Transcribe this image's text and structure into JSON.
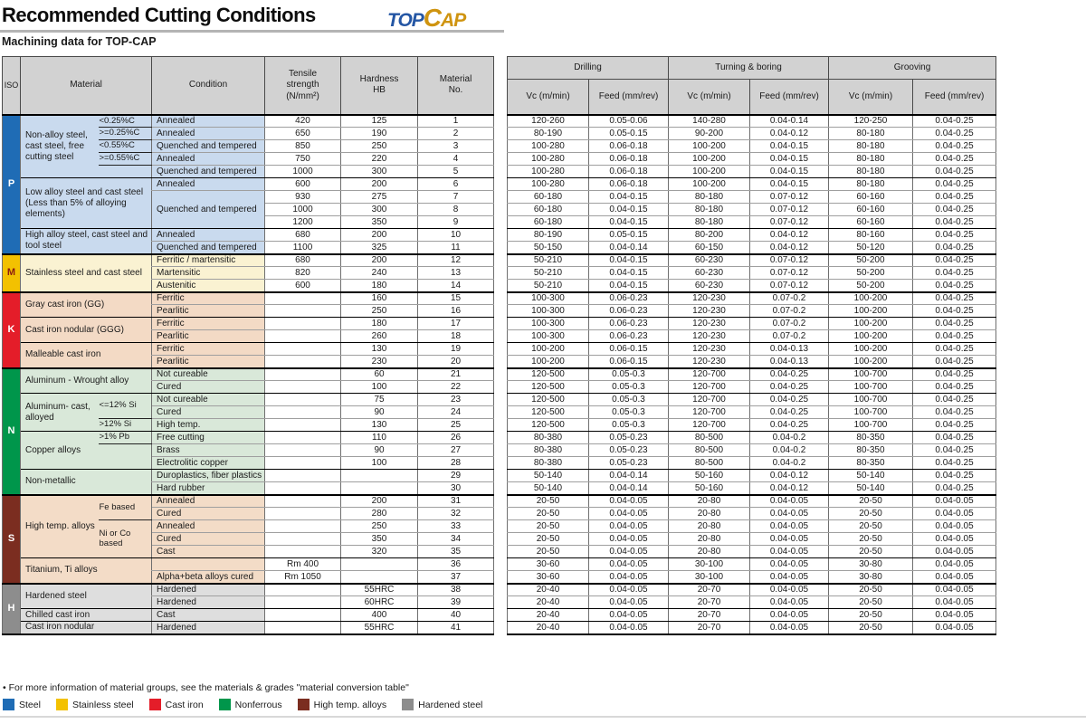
{
  "page": {
    "title": "Recommended Cutting Conditions",
    "subtitle": "Machining data for TOP-CAP",
    "logo": {
      "top": "TOP",
      "c": "C",
      "ap": "AP"
    },
    "footnote": "• For more information of material groups, see the materials & grades \"material conversion table\""
  },
  "left_table": {
    "headers": {
      "iso": "ISO",
      "material": "Material",
      "condition": "Condition",
      "tensile": "Tensile\nstrength\n(N/mm²)",
      "hardness": "Hardness\nHB",
      "material_no": "Material\nNo."
    }
  },
  "right_table": {
    "groups": [
      "Drilling",
      "Turning & boring",
      "Grooving"
    ],
    "sub_headers": [
      "Vc (m/min)",
      "Feed (mm/rev)",
      "Vc (m/min)",
      "Feed (mm/rev)",
      "Vc (m/min)",
      "Feed (mm/rev)"
    ]
  },
  "legend": [
    {
      "label": "Steel",
      "color": "#1f6cb5"
    },
    {
      "label": "Stainless steel",
      "color": "#f3c101"
    },
    {
      "label": "Cast iron",
      "color": "#e41d29"
    },
    {
      "label": "Nonferrous",
      "color": "#00964b"
    },
    {
      "label": "High temp. alloys",
      "color": "#7b2d20"
    },
    {
      "label": "Hardened steel",
      "color": "#8d8d8d"
    }
  ],
  "sections": [
    {
      "iso": "P",
      "band": "#1f6cb5",
      "letter_color": "#ffffff",
      "tint": "#c9daee",
      "groups": [
        {
          "material": "Non-alloy steel, cast steel, free cutting steel",
          "subs": [
            {
              "text": "<0.25%C",
              "span": 1
            },
            {
              "text": ">=0.25%C",
              "span": 1
            },
            {
              "text": "<0.55%C",
              "span": 1
            },
            {
              "text": ">=0.55%C",
              "span": 1
            },
            {
              "text": "",
              "span": 1
            }
          ],
          "conds": [
            "Annealed",
            "Annealed",
            "Quenched and tempered",
            "Annealed",
            "Quenched and tempered"
          ],
          "rows": [
            {
              "t": "420",
              "hb": "125",
              "no": "1",
              "v": [
                "120-260",
                "0.05-0.06",
                "140-280",
                "0.04-0.14",
                "120-250",
                "0.04-0.25"
              ]
            },
            {
              "t": "650",
              "hb": "190",
              "no": "2",
              "v": [
                "80-190",
                "0.05-0.15",
                "90-200",
                "0.04-0.12",
                "80-180",
                "0.04-0.25"
              ]
            },
            {
              "t": "850",
              "hb": "250",
              "no": "3",
              "v": [
                "100-280",
                "0.06-0.18",
                "100-200",
                "0.04-0.15",
                "80-180",
                "0.04-0.25"
              ]
            },
            {
              "t": "750",
              "hb": "220",
              "no": "4",
              "v": [
                "100-280",
                "0.06-0.18",
                "100-200",
                "0.04-0.15",
                "80-180",
                "0.04-0.25"
              ]
            },
            {
              "t": "1000",
              "hb": "300",
              "no": "5",
              "v": [
                "100-280",
                "0.06-0.18",
                "100-200",
                "0.04-0.15",
                "80-180",
                "0.04-0.25"
              ]
            }
          ]
        },
        {
          "material": "Low alloy steel and cast steel (Less than 5% of alloying elements)",
          "conds": [
            {
              "text": "Annealed",
              "span": 1
            },
            {
              "text": "Quenched and tempered",
              "span": 3
            }
          ],
          "rows": [
            {
              "t": "600",
              "hb": "200",
              "no": "6",
              "v": [
                "100-280",
                "0.06-0.18",
                "100-200",
                "0.04-0.15",
                "80-180",
                "0.04-0.25"
              ]
            },
            {
              "t": "930",
              "hb": "275",
              "no": "7",
              "v": [
                "60-180",
                "0.04-0.15",
                "80-180",
                "0.07-0.12",
                "60-160",
                "0.04-0.25"
              ]
            },
            {
              "t": "1000",
              "hb": "300",
              "no": "8",
              "v": [
                "60-180",
                "0.04-0.15",
                "80-180",
                "0.07-0.12",
                "60-160",
                "0.04-0.25"
              ]
            },
            {
              "t": "1200",
              "hb": "350",
              "no": "9",
              "v": [
                "60-180",
                "0.04-0.15",
                "80-180",
                "0.07-0.12",
                "60-160",
                "0.04-0.25"
              ]
            }
          ]
        },
        {
          "material": "High alloy steel, cast steel and tool steel",
          "conds": [
            "Annealed",
            "Quenched and tempered"
          ],
          "rows": [
            {
              "t": "680",
              "hb": "200",
              "no": "10",
              "v": [
                "80-190",
                "0.05-0.15",
                "80-200",
                "0.04-0.12",
                "80-160",
                "0.04-0.25"
              ]
            },
            {
              "t": "1100",
              "hb": "325",
              "no": "11",
              "v": [
                "50-150",
                "0.04-0.14",
                "60-150",
                "0.04-0.12",
                "50-120",
                "0.04-0.25"
              ]
            }
          ]
        }
      ]
    },
    {
      "iso": "M",
      "band": "#f3c101",
      "letter_color": "#8c1d10",
      "tint": "#faf2d2",
      "groups": [
        {
          "material": "Stainless steel and cast steel",
          "conds": [
            "Ferritic / martensitic",
            "Martensitic",
            "Austenitic"
          ],
          "rows": [
            {
              "t": "680",
              "hb": "200",
              "no": "12",
              "v": [
                "50-210",
                "0.04-0.15",
                "60-230",
                "0.07-0.12",
                "50-200",
                "0.04-0.25"
              ]
            },
            {
              "t": "820",
              "hb": "240",
              "no": "13",
              "v": [
                "50-210",
                "0.04-0.15",
                "60-230",
                "0.07-0.12",
                "50-200",
                "0.04-0.25"
              ]
            },
            {
              "t": "600",
              "hb": "180",
              "no": "14",
              "v": [
                "50-210",
                "0.04-0.15",
                "60-230",
                "0.07-0.12",
                "50-200",
                "0.04-0.25"
              ]
            }
          ]
        }
      ]
    },
    {
      "iso": "K",
      "band": "#e41d29",
      "letter_color": "#ffffff",
      "tint": "#f3dac5",
      "groups": [
        {
          "material": "Gray cast iron (GG)",
          "conds": [
            "Ferritic",
            "Pearlitic"
          ],
          "rows": [
            {
              "t": "",
              "hb": "160",
              "no": "15",
              "v": [
                "100-300",
                "0.06-0.23",
                "120-230",
                "0.07-0.2",
                "100-200",
                "0.04-0.25"
              ]
            },
            {
              "t": "",
              "hb": "250",
              "no": "16",
              "v": [
                "100-300",
                "0.06-0.23",
                "120-230",
                "0.07-0.2",
                "100-200",
                "0.04-0.25"
              ]
            }
          ]
        },
        {
          "material": "Cast iron nodular (GGG)",
          "conds": [
            "Ferritic",
            "Pearlitic"
          ],
          "rows": [
            {
              "t": "",
              "hb": "180",
              "no": "17",
              "v": [
                "100-300",
                "0.06-0.23",
                "120-230",
                "0.07-0.2",
                "100-200",
                "0.04-0.25"
              ]
            },
            {
              "t": "",
              "hb": "260",
              "no": "18",
              "v": [
                "100-300",
                "0.06-0.23",
                "120-230",
                "0.07-0.2",
                "100-200",
                "0.04-0.25"
              ]
            }
          ]
        },
        {
          "material": "Malleable cast iron",
          "conds": [
            "Ferritic",
            "Pearlitic"
          ],
          "rows": [
            {
              "t": "",
              "hb": "130",
              "no": "19",
              "v": [
                "100-200",
                "0.06-0.15",
                "120-230",
                "0.04-0.13",
                "100-200",
                "0.04-0.25"
              ]
            },
            {
              "t": "",
              "hb": "230",
              "no": "20",
              "v": [
                "100-200",
                "0.06-0.15",
                "120-230",
                "0.04-0.13",
                "100-200",
                "0.04-0.25"
              ]
            }
          ]
        }
      ]
    },
    {
      "iso": "N",
      "band": "#00964b",
      "letter_color": "#ffffff",
      "tint": "#d9e8d9",
      "groups": [
        {
          "material": "Aluminum - Wrought alloy",
          "conds": [
            "Not cureable",
            "Cured"
          ],
          "rows": [
            {
              "t": "",
              "hb": "60",
              "no": "21",
              "v": [
                "120-500",
                "0.05-0.3",
                "120-700",
                "0.04-0.25",
                "100-700",
                "0.04-0.25"
              ]
            },
            {
              "t": "",
              "hb": "100",
              "no": "22",
              "v": [
                "120-500",
                "0.05-0.3",
                "120-700",
                "0.04-0.25",
                "100-700",
                "0.04-0.25"
              ]
            }
          ]
        },
        {
          "material": "Aluminum- cast, alloyed",
          "subs": [
            {
              "text": "<=12% Si",
              "span": 2
            },
            {
              "text": ">12% Si",
              "span": 1
            }
          ],
          "conds": [
            "Not cureable",
            "Cured",
            "High temp."
          ],
          "rows": [
            {
              "t": "",
              "hb": "75",
              "no": "23",
              "v": [
                "120-500",
                "0.05-0.3",
                "120-700",
                "0.04-0.25",
                "100-700",
                "0.04-0.25"
              ]
            },
            {
              "t": "",
              "hb": "90",
              "no": "24",
              "v": [
                "120-500",
                "0.05-0.3",
                "120-700",
                "0.04-0.25",
                "100-700",
                "0.04-0.25"
              ]
            },
            {
              "t": "",
              "hb": "130",
              "no": "25",
              "v": [
                "120-500",
                "0.05-0.3",
                "120-700",
                "0.04-0.25",
                "100-700",
                "0.04-0.25"
              ]
            }
          ]
        },
        {
          "material": "Copper alloys",
          "subs": [
            {
              "text": ">1% Pb",
              "span": 1
            },
            {
              "text": "",
              "span": 2
            }
          ],
          "conds": [
            "Free cutting",
            "Brass",
            "Electrolitic copper"
          ],
          "rows": [
            {
              "t": "",
              "hb": "110",
              "no": "26",
              "v": [
                "80-380",
                "0.05-0.23",
                "80-500",
                "0.04-0.2",
                "80-350",
                "0.04-0.25"
              ]
            },
            {
              "t": "",
              "hb": "90",
              "no": "27",
              "v": [
                "80-380",
                "0.05-0.23",
                "80-500",
                "0.04-0.2",
                "80-350",
                "0.04-0.25"
              ]
            },
            {
              "t": "",
              "hb": "100",
              "no": "28",
              "v": [
                "80-380",
                "0.05-0.23",
                "80-500",
                "0.04-0.2",
                "80-350",
                "0.04-0.25"
              ]
            }
          ]
        },
        {
          "material": "Non-metallic",
          "conds": [
            "Duroplastics, fiber plastics",
            "Hard rubber"
          ],
          "rows": [
            {
              "t": "",
              "hb": "",
              "no": "29",
              "v": [
                "50-140",
                "0.04-0.14",
                "50-160",
                "0.04-0.12",
                "50-140",
                "0.04-0.25"
              ]
            },
            {
              "t": "",
              "hb": "",
              "no": "30",
              "v": [
                "50-140",
                "0.04-0.14",
                "50-160",
                "0.04-0.12",
                "50-140",
                "0.04-0.25"
              ]
            }
          ]
        }
      ]
    },
    {
      "iso": "S",
      "band": "#7b2d20",
      "letter_color": "#ffffff",
      "tint": "#f3dcc7",
      "groups": [
        {
          "material": "High temp. alloys",
          "subs": [
            {
              "text": "Fe based",
              "span": 2
            },
            {
              "text": "Ni or Co based",
              "span": 3
            }
          ],
          "conds": [
            "Annealed",
            "Cured",
            "Annealed",
            "Cured",
            "Cast"
          ],
          "rows": [
            {
              "t": "",
              "hb": "200",
              "no": "31",
              "v": [
                "20-50",
                "0.04-0.05",
                "20-80",
                "0.04-0.05",
                "20-50",
                "0.04-0.05"
              ]
            },
            {
              "t": "",
              "hb": "280",
              "no": "32",
              "v": [
                "20-50",
                "0.04-0.05",
                "20-80",
                "0.04-0.05",
                "20-50",
                "0.04-0.05"
              ]
            },
            {
              "t": "",
              "hb": "250",
              "no": "33",
              "v": [
                "20-50",
                "0.04-0.05",
                "20-80",
                "0.04-0.05",
                "20-50",
                "0.04-0.05"
              ]
            },
            {
              "t": "",
              "hb": "350",
              "no": "34",
              "v": [
                "20-50",
                "0.04-0.05",
                "20-80",
                "0.04-0.05",
                "20-50",
                "0.04-0.05"
              ]
            },
            {
              "t": "",
              "hb": "320",
              "no": "35",
              "v": [
                "20-50",
                "0.04-0.05",
                "20-80",
                "0.04-0.05",
                "20-50",
                "0.04-0.05"
              ]
            }
          ]
        },
        {
          "material": "Titanium, Ti alloys",
          "conds": [
            "",
            "Alpha+beta alloys cured"
          ],
          "rows": [
            {
              "t": "Rm 400",
              "hb": "",
              "no": "36",
              "v": [
                "30-60",
                "0.04-0.05",
                "30-100",
                "0.04-0.05",
                "30-80",
                "0.04-0.05"
              ]
            },
            {
              "t": "Rm 1050",
              "hb": "",
              "no": "37",
              "v": [
                "30-60",
                "0.04-0.05",
                "30-100",
                "0.04-0.05",
                "30-80",
                "0.04-0.05"
              ]
            }
          ]
        }
      ]
    },
    {
      "iso": "H",
      "band": "#8d8d8d",
      "letter_color": "#ffffff",
      "tint": "#dedede",
      "groups": [
        {
          "material": "Hardened steel",
          "conds": [
            "Hardened",
            "Hardened"
          ],
          "rows": [
            {
              "t": "",
              "hb": "55HRC",
              "no": "38",
              "v": [
                "20-40",
                "0.04-0.05",
                "20-70",
                "0.04-0.05",
                "20-50",
                "0.04-0.05"
              ]
            },
            {
              "t": "",
              "hb": "60HRC",
              "no": "39",
              "v": [
                "20-40",
                "0.04-0.05",
                "20-70",
                "0.04-0.05",
                "20-50",
                "0.04-0.05"
              ]
            }
          ]
        },
        {
          "material": "Chilled cast iron",
          "conds": [
            "Cast"
          ],
          "rows": [
            {
              "t": "",
              "hb": "400",
              "no": "40",
              "v": [
                "20-40",
                "0.04-0.05",
                "20-70",
                "0.04-0.05",
                "20-50",
                "0.04-0.05"
              ]
            }
          ]
        },
        {
          "material": "Cast iron nodular",
          "conds": [
            "Hardened"
          ],
          "rows": [
            {
              "t": "",
              "hb": "55HRC",
              "no": "41",
              "v": [
                "20-40",
                "0.04-0.05",
                "20-70",
                "0.04-0.05",
                "20-50",
                "0.04-0.05"
              ]
            }
          ]
        }
      ]
    }
  ]
}
